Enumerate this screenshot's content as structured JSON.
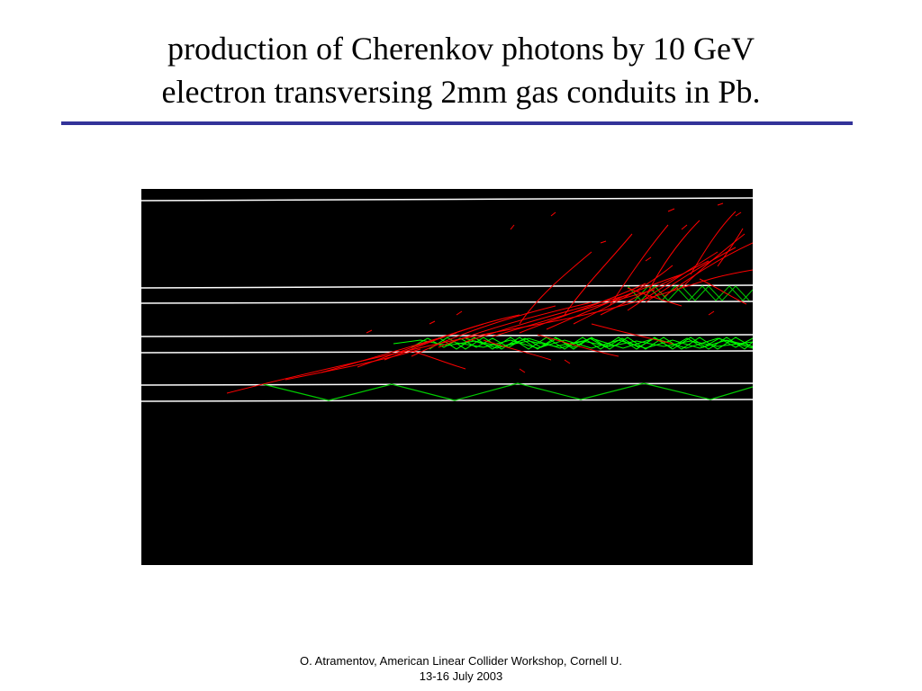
{
  "slide": {
    "title_line1": "production of Cherenkov photons by 10 GeV",
    "title_line2": "electron transversing 2mm gas conduits in Pb.",
    "footer_line1": "O. Atramentov, American Linear Collider Workshop, Cornell U.",
    "footer_line2": "13-16 July 2003"
  },
  "colors": {
    "rule": "#333399",
    "figure_background": "#000000",
    "conduit_lines": "#ffffff",
    "shower_tracks": "#ff0000",
    "cherenkov_photons": "#00ff00"
  }
}
